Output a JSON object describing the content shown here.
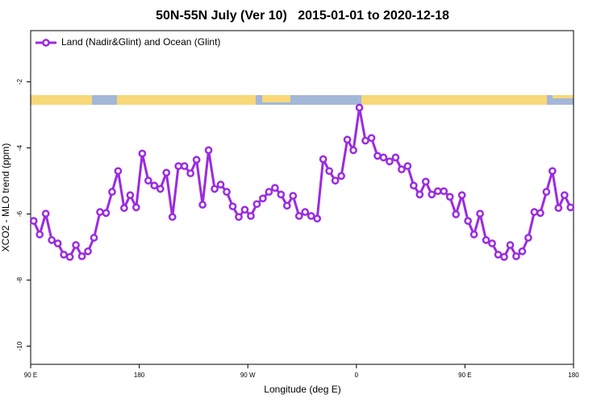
{
  "chart_data": {
    "type": "line",
    "title": "50N-55N July (Ver 10)   2015-01-01 to 2020-12-18",
    "x_label": "Longitude (deg E)",
    "y_label": "XCO2 - MLO trend (ppm)",
    "x": [
      92.5,
      97.5,
      102.5,
      107.5,
      112.5,
      117.5,
      122.5,
      127.5,
      132.5,
      137.5,
      142.5,
      147.5,
      152.5,
      157.5,
      162.5,
      167.5,
      172.5,
      177.5,
      182.5,
      187.5,
      192.5,
      197.5,
      202.5,
      207.5,
      212.5,
      217.5,
      222.5,
      227.5,
      232.5,
      237.5,
      242.5,
      247.5,
      252.5,
      257.5,
      262.5,
      267.5,
      272.5,
      277.5,
      282.5,
      287.5,
      292.5,
      297.5,
      302.5,
      307.5,
      312.5,
      317.5,
      322.5,
      327.5,
      332.5,
      337.5,
      342.5,
      347.5,
      352.5,
      357.5,
      362.5,
      367.5,
      372.5,
      377.5,
      382.5,
      387.5,
      392.5,
      397.5,
      402.5,
      407.5,
      412.5,
      417.5,
      422.5,
      427.5,
      432.5,
      437.5,
      442.5,
      447.5,
      452.5,
      457.5,
      462.5,
      467.5,
      472.5,
      477.5,
      482.5,
      487.5,
      492.5,
      497.5,
      502.5,
      507.5,
      512.5,
      517.5,
      522.5,
      527.5,
      532.5,
      537.5
    ],
    "series": [
      {
        "name": "Land (Nadir&Glint) and Ocean (Glint)",
        "color": "#9b2be0",
        "values": [
          -6.21,
          -6.62,
          -5.99,
          -6.79,
          -6.89,
          -7.23,
          -7.3,
          -6.94,
          -7.28,
          -7.13,
          -6.72,
          -5.94,
          -5.97,
          -5.33,
          -4.7,
          -5.82,
          -5.43,
          -5.8,
          -4.17,
          -4.99,
          -5.14,
          -5.24,
          -4.75,
          -6.09,
          -4.55,
          -4.55,
          -4.77,
          -4.36,
          -5.72,
          -4.07,
          -5.24,
          -5.11,
          -5.33,
          -5.77,
          -6.09,
          -5.87,
          -6.06,
          -5.7,
          -5.53,
          -5.33,
          -5.21,
          -5.41,
          -5.75,
          -5.45,
          -6.06,
          -5.94,
          -6.06,
          -6.14,
          -4.34,
          -4.7,
          -4.99,
          -4.85,
          -3.75,
          -4.07,
          -2.78,
          -3.78,
          -3.7,
          -4.24,
          -4.29,
          -4.41,
          -4.29,
          -4.65,
          -4.55,
          -5.14,
          -5.41,
          -5.02,
          -5.41,
          -5.31,
          -5.31,
          -5.48,
          -6.01,
          -5.43,
          -6.21,
          -6.62,
          -5.99,
          -6.79,
          -6.89,
          -7.23,
          -7.3,
          -6.94,
          -7.28,
          -7.13,
          -6.72,
          -5.94,
          -5.97,
          -5.33,
          -4.7,
          -5.82,
          -5.43,
          -5.8
        ]
      }
    ],
    "xlim": [
      90,
      540
    ],
    "xticks": [
      {
        "value": 90,
        "label": "90 E"
      },
      180,
      {
        "value": 270,
        "label": "90 W"
      },
      {
        "value": 360,
        "label": "0"
      },
      {
        "value": 450,
        "label": "90 E"
      },
      {
        "value": 540,
        "label": "180"
      }
    ],
    "ylim": [
      -10.55,
      -0.45
    ],
    "yticks": [
      -2,
      -4,
      -6,
      -8,
      -10
    ],
    "legend": "upper left",
    "grid": false
  }
}
